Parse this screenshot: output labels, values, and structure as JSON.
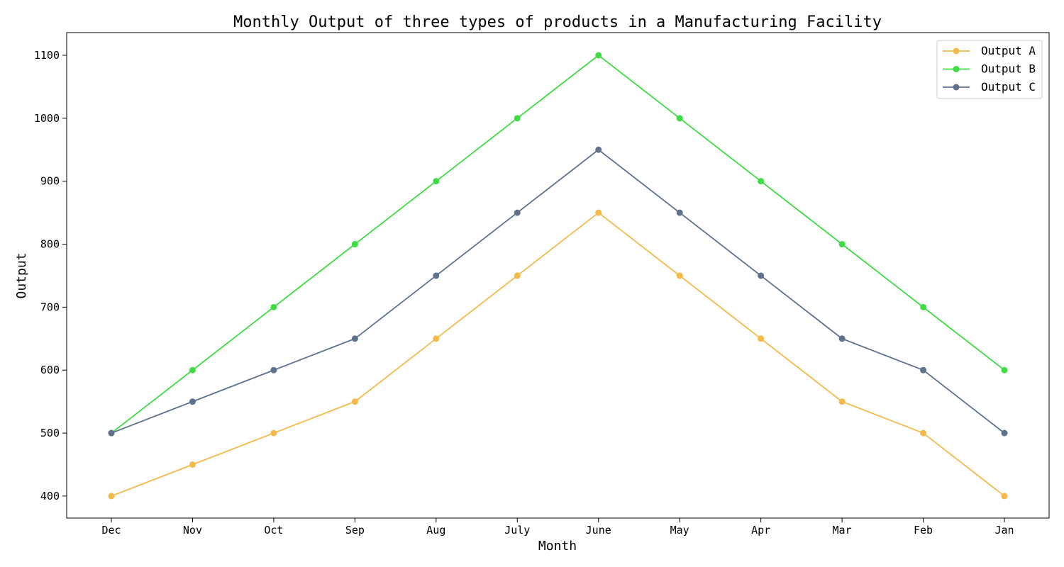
{
  "chart_data": {
    "type": "line",
    "title": "Monthly Output of three types of products in a Manufacturing Facility",
    "xlabel": "Month",
    "ylabel": "Output",
    "categories": [
      "Dec",
      "Nov",
      "Oct",
      "Sep",
      "Aug",
      "July",
      "June",
      "May",
      "Apr",
      "Mar",
      "Feb",
      "Jan"
    ],
    "ylim": [
      365,
      1136
    ],
    "yticks": [
      400,
      500,
      600,
      700,
      800,
      900,
      1000,
      1100
    ],
    "grid": false,
    "legend_position": "top-right",
    "series": [
      {
        "name": "Output A",
        "color": "#f5b94a",
        "values": [
          400,
          450,
          500,
          550,
          650,
          750,
          850,
          750,
          650,
          550,
          500,
          400
        ]
      },
      {
        "name": "Output B",
        "color": "#3ddc44",
        "values": [
          500,
          600,
          700,
          800,
          900,
          1000,
          1100,
          1000,
          900,
          800,
          700,
          600
        ]
      },
      {
        "name": "Output C",
        "color": "#5e718d",
        "values": [
          500,
          550,
          600,
          650,
          750,
          850,
          950,
          850,
          750,
          650,
          600,
          500
        ]
      }
    ]
  }
}
